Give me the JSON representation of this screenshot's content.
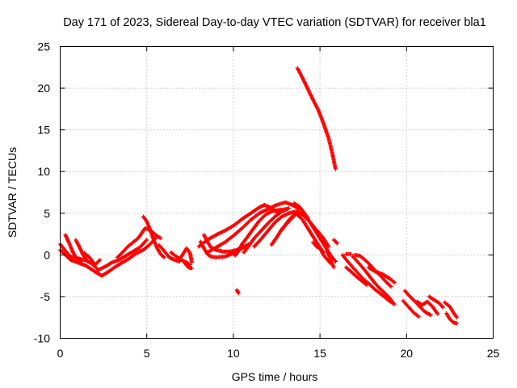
{
  "chart_data": {
    "type": "scatter",
    "title": "Day 171 of 2023, Sidereal Day-to-day VTEC variation (SDTVAR) for receiver bla1",
    "xlabel": "GPS time / hours",
    "ylabel": "SDTVAR / TECUs",
    "xlim": [
      0,
      25
    ],
    "ylim": [
      -10,
      25
    ],
    "x_ticks": [
      0,
      5,
      10,
      15,
      20,
      25
    ],
    "y_ticks": [
      -10,
      -5,
      0,
      5,
      10,
      15,
      20,
      25
    ],
    "grid": true,
    "marker": "+",
    "series": [
      {
        "name": "SDTVAR",
        "color": "#ff0000",
        "tracks": [
          [
            [
              0.0,
              1.3
            ],
            [
              0.3,
              0.5
            ],
            [
              0.6,
              -0.2
            ],
            [
              1.0,
              -0.4
            ],
            [
              1.4,
              -0.6
            ],
            [
              1.8,
              -1.0
            ],
            [
              2.2,
              -1.8
            ],
            [
              2.6,
              -1.4
            ],
            [
              3.0,
              -0.9
            ],
            [
              3.4,
              -0.6
            ],
            [
              3.8,
              -0.1
            ],
            [
              4.2,
              0.4
            ],
            [
              4.6,
              0.9
            ],
            [
              5.0,
              1.8
            ]
          ],
          [
            [
              0.0,
              0.6
            ],
            [
              0.3,
              0.0
            ],
            [
              0.6,
              -0.6
            ],
            [
              1.0,
              -0.9
            ],
            [
              1.5,
              -1.3
            ],
            [
              2.0,
              -2.0
            ],
            [
              2.4,
              -2.5
            ],
            [
              2.8,
              -2.0
            ],
            [
              3.2,
              -1.4
            ],
            [
              3.6,
              -0.9
            ],
            [
              4.0,
              -0.4
            ],
            [
              4.4,
              0.2
            ],
            [
              4.8,
              0.6
            ],
            [
              5.2,
              1.3
            ],
            [
              5.5,
              2.0
            ]
          ],
          [
            [
              0.3,
              2.4
            ],
            [
              0.5,
              1.5
            ],
            [
              0.7,
              0.5
            ],
            [
              0.9,
              -0.3
            ],
            [
              1.2,
              -0.8
            ]
          ],
          [
            [
              0.9,
              1.8
            ],
            [
              1.1,
              1.0
            ],
            [
              1.3,
              0.1
            ],
            [
              1.5,
              -0.5
            ]
          ],
          [
            [
              1.4,
              0.2
            ],
            [
              1.7,
              -0.3
            ],
            [
              2.0,
              -1.2
            ],
            [
              2.3,
              -0.6
            ]
          ],
          [
            [
              3.3,
              -0.3
            ],
            [
              3.6,
              0.3
            ],
            [
              3.9,
              1.0
            ],
            [
              4.2,
              1.5
            ],
            [
              4.5,
              2.0
            ],
            [
              4.9,
              3.2
            ],
            [
              5.2,
              3.0
            ],
            [
              5.5,
              2.4
            ],
            [
              5.8,
              2.0
            ]
          ],
          [
            [
              4.8,
              4.6
            ],
            [
              5.0,
              4.0
            ],
            [
              5.2,
              3.0
            ],
            [
              5.4,
              1.8
            ],
            [
              5.6,
              0.8
            ],
            [
              5.8,
              0.1
            ],
            [
              6.0,
              -0.3
            ]
          ],
          [
            [
              5.7,
              1.2
            ],
            [
              6.0,
              0.5
            ],
            [
              6.3,
              -0.3
            ],
            [
              6.6,
              -0.6
            ],
            [
              6.9,
              -0.8
            ]
          ],
          [
            [
              6.4,
              0.3
            ],
            [
              6.7,
              -0.2
            ],
            [
              7.0,
              -0.6
            ],
            [
              7.3,
              -0.9
            ],
            [
              7.5,
              -1.2
            ]
          ],
          [
            [
              6.8,
              -0.6
            ],
            [
              7.0,
              -0.2
            ],
            [
              7.3,
              0.8
            ],
            [
              7.5,
              0.2
            ],
            [
              7.6,
              -0.9
            ]
          ],
          [
            [
              7.2,
              -1.0
            ],
            [
              7.4,
              -1.5
            ],
            [
              7.6,
              -1.6
            ]
          ],
          [
            [
              8.1,
              1.6
            ],
            [
              8.3,
              0.8
            ],
            [
              8.5,
              0.1
            ],
            [
              8.7,
              -0.2
            ],
            [
              9.0,
              -0.3
            ],
            [
              9.5,
              -0.2
            ],
            [
              10.0,
              0.2
            ],
            [
              10.5,
              0.8
            ],
            [
              10.9,
              1.3
            ]
          ],
          [
            [
              8.3,
              2.4
            ],
            [
              8.5,
              1.6
            ],
            [
              8.7,
              0.9
            ],
            [
              9.0,
              0.6
            ],
            [
              9.4,
              0.4
            ],
            [
              9.8,
              0.4
            ],
            [
              10.2,
              0.6
            ],
            [
              10.6,
              1.1
            ]
          ],
          [
            [
              8.0,
              1.0
            ],
            [
              8.5,
              1.8
            ],
            [
              9.0,
              2.4
            ],
            [
              9.5,
              2.9
            ],
            [
              10.0,
              3.5
            ],
            [
              10.5,
              4.3
            ],
            [
              11.0,
              5.0
            ],
            [
              11.5,
              5.7
            ],
            [
              11.8,
              6.0
            ],
            [
              12.2,
              5.6
            ],
            [
              12.6,
              5.0
            ]
          ],
          [
            [
              8.5,
              0.3
            ],
            [
              9.0,
              0.9
            ],
            [
              9.5,
              1.5
            ],
            [
              10.0,
              2.3
            ],
            [
              10.5,
              3.2
            ],
            [
              11.0,
              4.2
            ],
            [
              11.5,
              5.0
            ],
            [
              12.0,
              5.5
            ],
            [
              12.5,
              6.0
            ],
            [
              13.0,
              6.3
            ],
            [
              13.4,
              6.0
            ],
            [
              13.8,
              5.5
            ]
          ],
          [
            [
              10.1,
              -0.1
            ],
            [
              10.3,
              0.5
            ],
            [
              10.5,
              1.3
            ],
            [
              10.8,
              2.1
            ],
            [
              11.1,
              3.0
            ],
            [
              11.5,
              4.1
            ],
            [
              11.9,
              4.9
            ],
            [
              12.3,
              5.3
            ],
            [
              12.7,
              5.4
            ],
            [
              13.1,
              5.5
            ]
          ],
          [
            [
              10.6,
              0.3
            ],
            [
              10.9,
              1.1
            ],
            [
              11.2,
              2.0
            ],
            [
              11.6,
              2.9
            ],
            [
              12.0,
              3.8
            ],
            [
              12.4,
              4.6
            ],
            [
              12.8,
              5.2
            ],
            [
              13.2,
              5.6
            ]
          ],
          [
            [
              11.2,
              1.0
            ],
            [
              11.6,
              1.9
            ],
            [
              12.0,
              2.9
            ],
            [
              12.4,
              3.9
            ],
            [
              12.8,
              4.6
            ],
            [
              13.2,
              5.0
            ],
            [
              13.6,
              5.2
            ],
            [
              14.0,
              5.0
            ],
            [
              14.3,
              4.5
            ]
          ],
          [
            [
              12.2,
              1.2
            ],
            [
              12.5,
              2.1
            ],
            [
              12.8,
              3.1
            ],
            [
              13.2,
              4.0
            ],
            [
              13.6,
              4.9
            ],
            [
              14.0,
              4.8
            ],
            [
              14.4,
              4.0
            ],
            [
              14.8,
              3.0
            ],
            [
              15.2,
              2.0
            ],
            [
              15.5,
              1.0
            ]
          ],
          [
            [
              13.5,
              6.2
            ],
            [
              13.8,
              5.8
            ],
            [
              14.1,
              5.0
            ],
            [
              14.4,
              4.0
            ],
            [
              14.7,
              3.0
            ],
            [
              15.0,
              2.0
            ],
            [
              15.3,
              1.0
            ],
            [
              15.6,
              0.0
            ],
            [
              15.9,
              -0.8
            ]
          ],
          [
            [
              12.8,
              3.0
            ],
            [
              13.2,
              4.2
            ],
            [
              13.6,
              5.0
            ],
            [
              14.0,
              4.2
            ],
            [
              14.3,
              3.2
            ],
            [
              14.6,
              2.2
            ],
            [
              14.9,
              1.2
            ],
            [
              15.2,
              0.3
            ]
          ],
          [
            [
              14.6,
              1.5
            ],
            [
              14.8,
              1.0
            ],
            [
              15.0,
              0.8
            ],
            [
              15.2,
              0.0
            ],
            [
              15.4,
              -0.5
            ],
            [
              15.6,
              -1.0
            ]
          ],
          [
            [
              15.4,
              0.5
            ],
            [
              15.6,
              -0.5
            ],
            [
              15.8,
              -1.5
            ]
          ],
          [
            [
              15.8,
              1.8
            ],
            [
              16.0,
              1.4
            ]
          ],
          [
            [
              13.7,
              22.4
            ],
            [
              14.0,
              21.2
            ],
            [
              14.3,
              19.9
            ],
            [
              14.6,
              18.6
            ],
            [
              14.9,
              17.4
            ],
            [
              15.2,
              15.8
            ],
            [
              15.5,
              14.0
            ],
            [
              15.7,
              12.3
            ],
            [
              15.9,
              10.3
            ]
          ],
          [
            [
              16.3,
              0.0
            ],
            [
              16.6,
              -0.8
            ],
            [
              16.9,
              -1.5
            ],
            [
              17.2,
              -2.2
            ],
            [
              17.5,
              -2.9
            ],
            [
              17.8,
              -3.4
            ],
            [
              18.1,
              -4.0
            ],
            [
              18.4,
              -4.5
            ],
            [
              18.7,
              -5.0
            ],
            [
              19.0,
              -5.5
            ],
            [
              19.3,
              -5.9
            ]
          ],
          [
            [
              16.5,
              -1.5
            ],
            [
              16.8,
              -2.0
            ],
            [
              17.1,
              -2.6
            ],
            [
              17.4,
              -3.1
            ],
            [
              17.7,
              -3.6
            ]
          ],
          [
            [
              16.9,
              -0.2
            ],
            [
              17.2,
              -0.9
            ],
            [
              17.5,
              -1.6
            ],
            [
              17.8,
              -2.4
            ],
            [
              18.1,
              -3.2
            ],
            [
              18.4,
              -3.9
            ],
            [
              18.7,
              -4.5
            ],
            [
              19.0,
              -5.1
            ],
            [
              19.2,
              -5.7
            ]
          ],
          [
            [
              16.5,
              0.1
            ],
            [
              16.8,
              0.1
            ]
          ],
          [
            [
              17.0,
              0.0
            ],
            [
              17.3,
              -0.1
            ],
            [
              17.6,
              -0.6
            ],
            [
              17.9,
              -1.2
            ],
            [
              18.2,
              -1.9
            ],
            [
              18.5,
              -2.5
            ],
            [
              18.8,
              -3.2
            ],
            [
              19.1,
              -3.8
            ]
          ],
          [
            [
              17.8,
              -1.5
            ],
            [
              18.2,
              -2.0
            ],
            [
              18.6,
              -2.3
            ],
            [
              19.0,
              -2.8
            ],
            [
              19.3,
              -3.3
            ]
          ],
          [
            [
              19.9,
              -4.3
            ],
            [
              20.2,
              -5.0
            ],
            [
              20.5,
              -5.6
            ],
            [
              20.8,
              -6.3
            ],
            [
              21.1,
              -6.9
            ],
            [
              21.4,
              -7.2
            ]
          ],
          [
            [
              19.8,
              -5.5
            ],
            [
              20.1,
              -6.2
            ],
            [
              20.4,
              -6.9
            ],
            [
              20.7,
              -7.4
            ]
          ],
          [
            [
              20.6,
              -5.6
            ],
            [
              20.9,
              -6.0
            ],
            [
              21.2,
              -5.6
            ],
            [
              21.5,
              -6.2
            ],
            [
              21.8,
              -7.1
            ]
          ],
          [
            [
              21.3,
              -5.0
            ],
            [
              21.6,
              -5.4
            ],
            [
              21.9,
              -5.8
            ],
            [
              22.1,
              -6.3
            ]
          ],
          [
            [
              22.2,
              -5.7
            ],
            [
              22.5,
              -6.2
            ],
            [
              22.7,
              -6.9
            ],
            [
              22.9,
              -7.5
            ]
          ],
          [
            [
              22.3,
              -7.0
            ],
            [
              22.5,
              -7.7
            ],
            [
              22.7,
              -8.1
            ],
            [
              22.9,
              -8.2
            ]
          ],
          [
            [
              10.2,
              -4.2
            ],
            [
              10.3,
              -4.6
            ]
          ]
        ]
      }
    ]
  }
}
